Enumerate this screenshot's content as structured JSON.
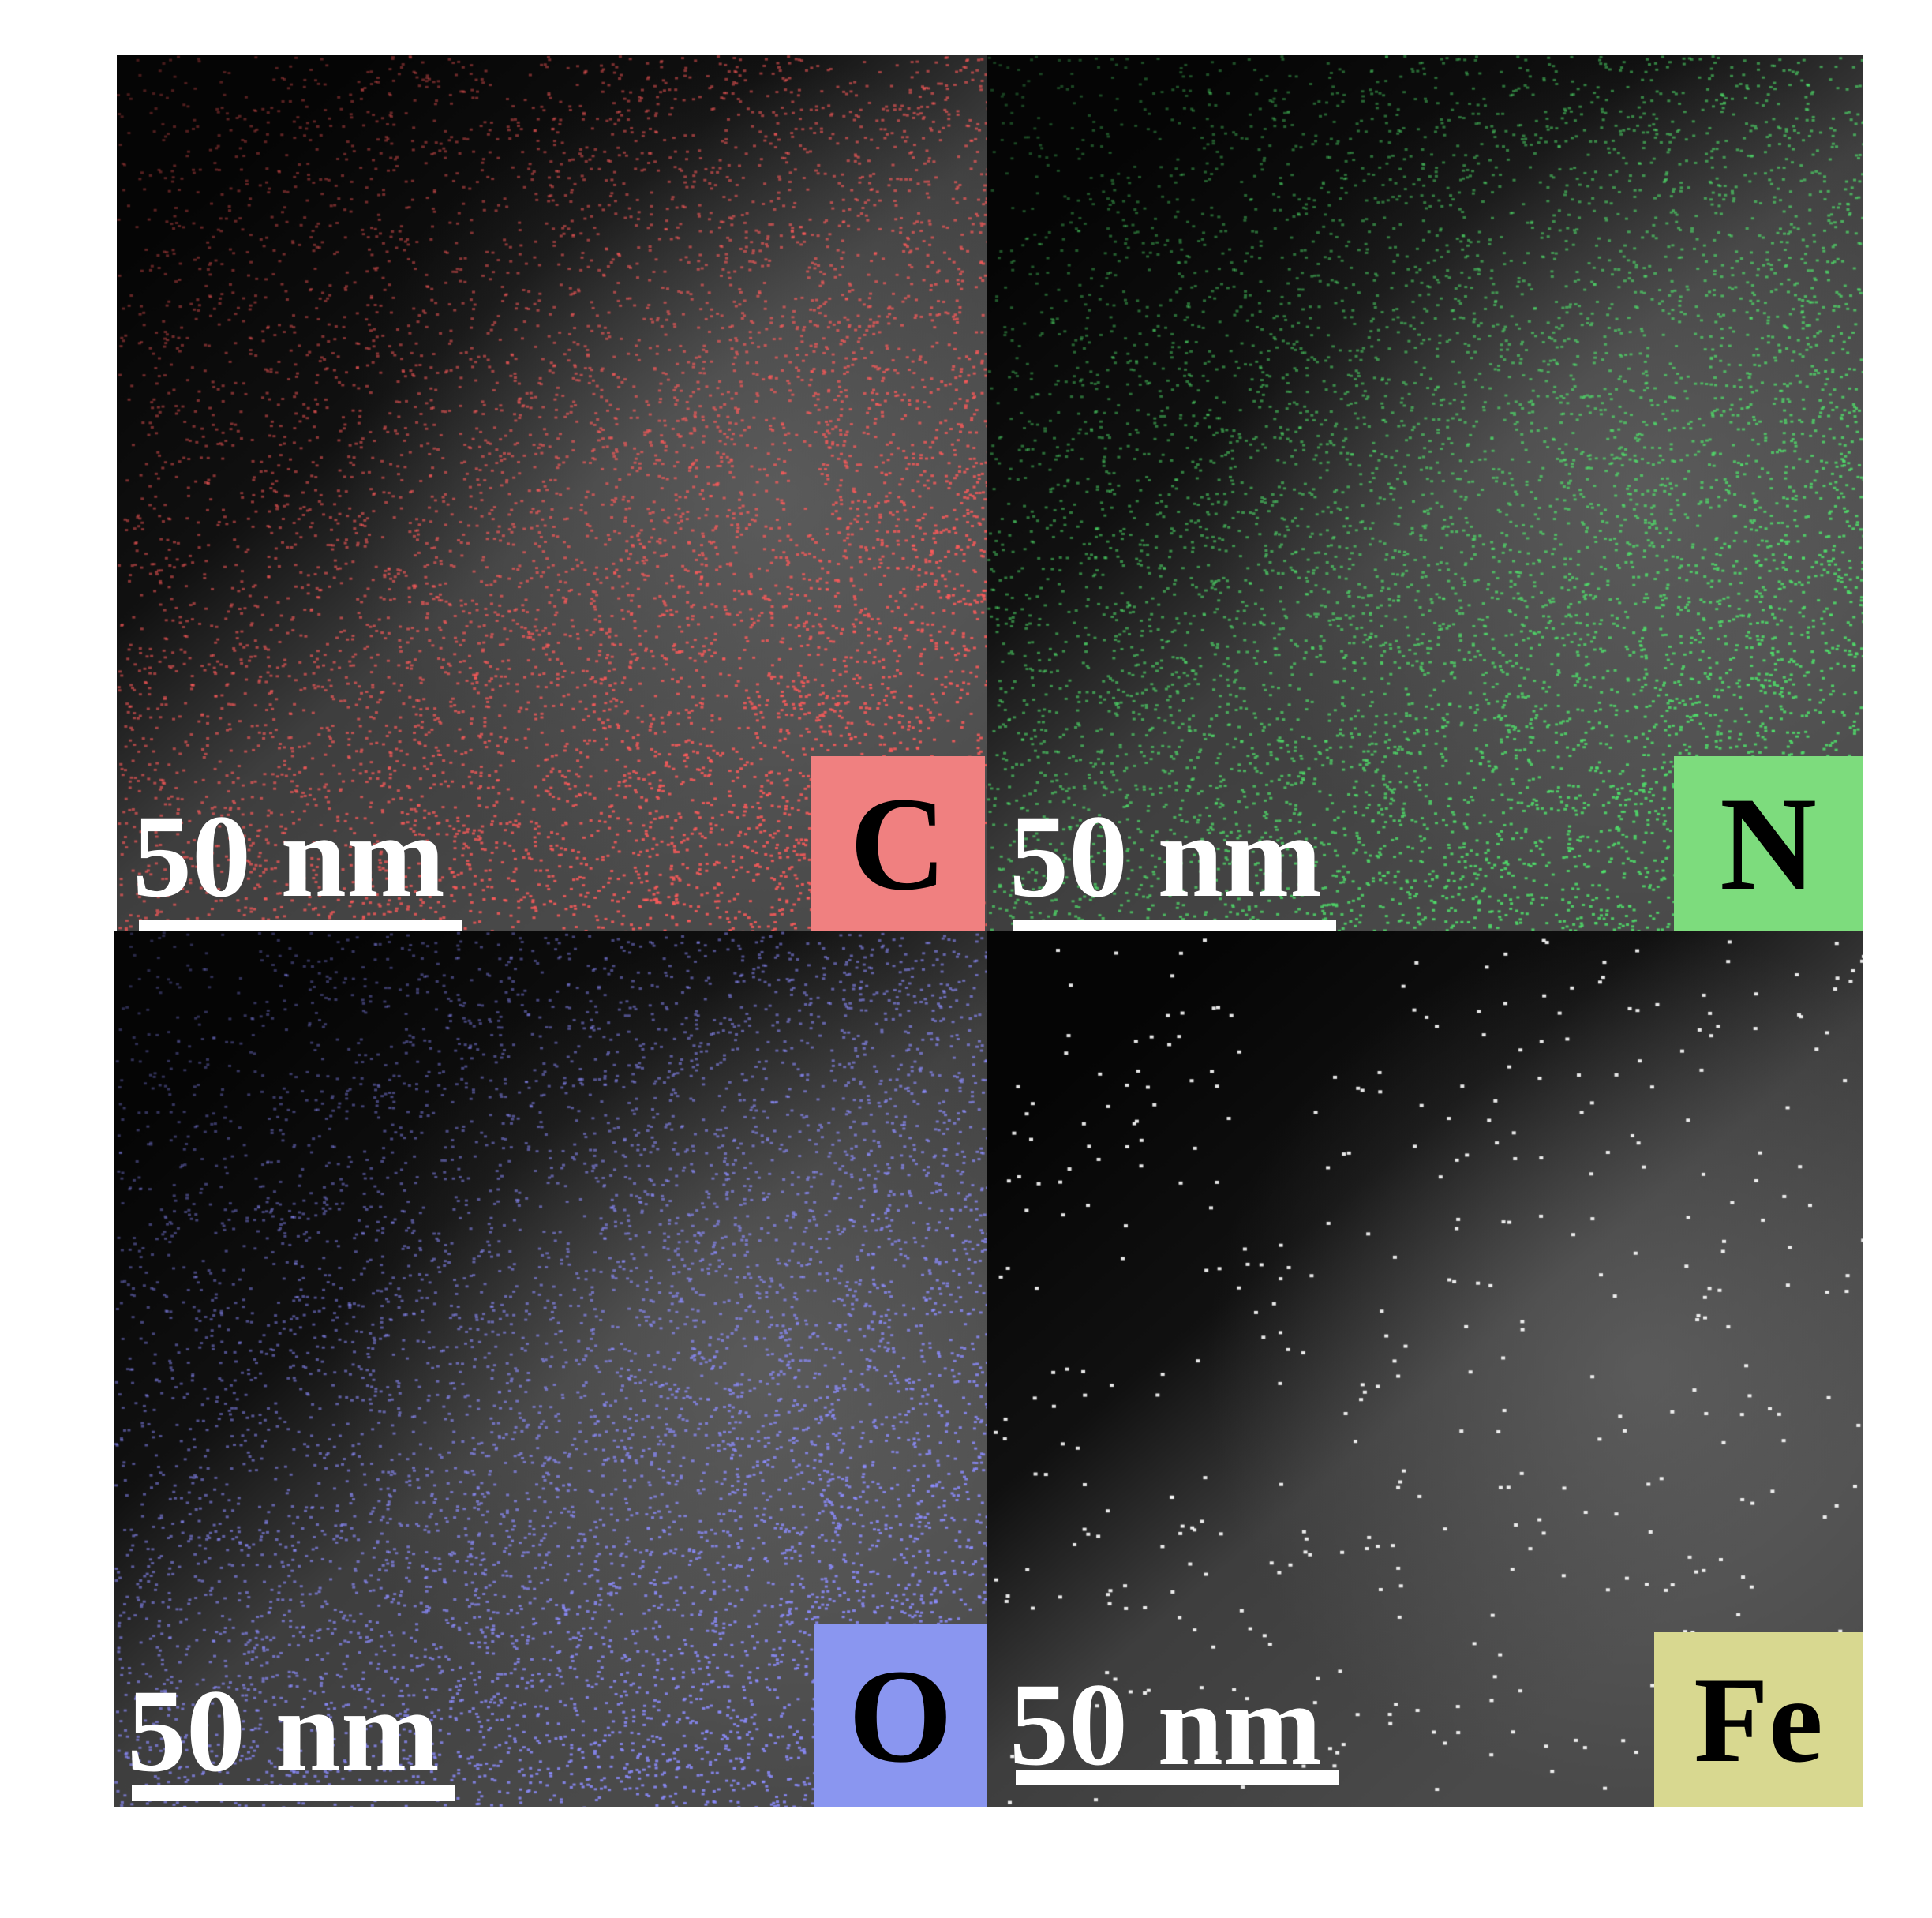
{
  "panels": [
    {
      "id": "c",
      "element": "C",
      "scale_bar": "50 nm",
      "badge_color": "#f08080",
      "dot_color": "#ff5a5a",
      "dot_density": "high"
    },
    {
      "id": "n",
      "element": "N",
      "scale_bar": "50 nm",
      "badge_color": "#7ddc7d",
      "dot_color": "#4fe06a",
      "dot_density": "high"
    },
    {
      "id": "o",
      "element": "O",
      "scale_bar": "50 nm",
      "badge_color": "#8a96f0",
      "dot_color": "#8c8cff",
      "dot_density": "high"
    },
    {
      "id": "fe",
      "element": "Fe",
      "scale_bar": "50 nm",
      "badge_color": "#d8d890",
      "dot_color": "#ffffff",
      "dot_density": "sparse"
    }
  ]
}
